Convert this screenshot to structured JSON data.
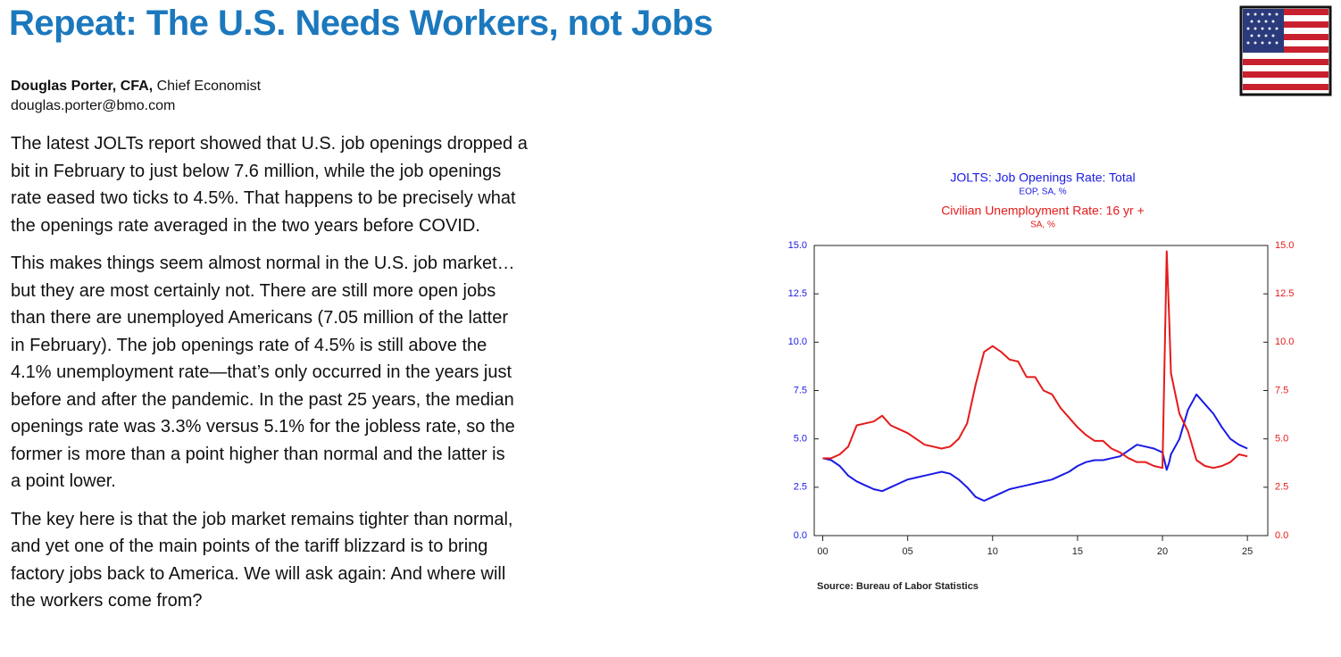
{
  "header": {
    "title": "Repeat: The U.S. Needs Workers, not Jobs",
    "author": "Douglas Porter, CFA,",
    "role": "Chief Economist",
    "email": "douglas.porter@bmo.com"
  },
  "paragraphs": [
    [
      "The latest JOLTs report showed that U.S. job openings dropped a",
      "bit in February to just below 7.6 million, while the job openings",
      "rate eased two ticks to 4.5%. That happens to be precisely what",
      "the openings rate averaged in the two years before COVID."
    ],
    [
      "This makes things seem almost normal in the U.S. job market…",
      "but they are most certainly not. There are still more open jobs",
      "than there are unemployed Americans (7.05 million of the latter",
      "in February). The job openings rate of 4.5% is still above the",
      "4.1% unemployment rate—that’s only occurred in the years just",
      "before and after the pandemic. In the past 25 years, the median",
      "openings rate was 3.3% versus 5.1% for the jobless rate, so the",
      "former is more than a point higher than normal and the latter is",
      "a point lower."
    ],
    [
      "The key here is that the job market remains tighter than normal,",
      "and yet one of the main points of the tariff blizzard is to bring",
      "factory jobs back to America. We will ask again: And where will",
      "the workers come from?"
    ]
  ],
  "chart_data": {
    "type": "line",
    "source": "Source:  Bureau of Labor Statistics",
    "x": [
      2000,
      2000.5,
      2001,
      2001.5,
      2002,
      2002.5,
      2003,
      2003.5,
      2004,
      2004.5,
      2005,
      2005.5,
      2006,
      2006.5,
      2007,
      2007.5,
      2008,
      2008.5,
      2009,
      2009.5,
      2010,
      2010.5,
      2011,
      2011.5,
      2012,
      2012.5,
      2013,
      2013.5,
      2014,
      2014.5,
      2015,
      2015.5,
      2016,
      2016.5,
      2017,
      2017.5,
      2018,
      2018.5,
      2019,
      2019.5,
      2020,
      2020.25,
      2020.4,
      2020.5,
      2021,
      2021.5,
      2022,
      2022.5,
      2023,
      2023.5,
      2024,
      2024.5,
      2025
    ],
    "series": [
      {
        "name": "JOLTS: Job Openings Rate: Total",
        "units": "EOP, SA, %",
        "color": "#1a1ae6",
        "values": [
          4.0,
          3.9,
          3.6,
          3.1,
          2.8,
          2.6,
          2.4,
          2.3,
          2.5,
          2.7,
          2.9,
          3.0,
          3.1,
          3.2,
          3.3,
          3.2,
          2.9,
          2.5,
          2.0,
          1.8,
          2.0,
          2.2,
          2.4,
          2.5,
          2.6,
          2.7,
          2.8,
          2.9,
          3.1,
          3.3,
          3.6,
          3.8,
          3.9,
          3.9,
          4.0,
          4.1,
          4.4,
          4.7,
          4.6,
          4.5,
          4.3,
          3.4,
          3.8,
          4.2,
          5.0,
          6.5,
          7.3,
          6.8,
          6.3,
          5.6,
          5.0,
          4.7,
          4.5
        ]
      },
      {
        "name": "Civilian Unemployment Rate: 16 yr +",
        "units": "SA, %",
        "color": "#e61a1a",
        "axis": "y2",
        "values": [
          4.0,
          4.0,
          4.2,
          4.6,
          5.7,
          5.8,
          5.9,
          6.2,
          5.7,
          5.5,
          5.3,
          5.0,
          4.7,
          4.6,
          4.5,
          4.6,
          5.0,
          5.8,
          7.8,
          9.5,
          9.8,
          9.5,
          9.1,
          9.0,
          8.2,
          8.2,
          7.5,
          7.3,
          6.6,
          6.1,
          5.6,
          5.2,
          4.9,
          4.9,
          4.5,
          4.3,
          4.0,
          3.8,
          3.8,
          3.6,
          3.5,
          14.7,
          11.1,
          8.4,
          6.3,
          5.4,
          3.9,
          3.6,
          3.5,
          3.6,
          3.8,
          4.2,
          4.1
        ]
      }
    ],
    "xlim": [
      1999.5,
      2026.2
    ],
    "xticks": [
      {
        "value": 2000,
        "label": "00"
      },
      {
        "value": 2005,
        "label": "05"
      },
      {
        "value": 2010,
        "label": "10"
      },
      {
        "value": 2015,
        "label": "15"
      },
      {
        "value": 2020,
        "label": "20"
      },
      {
        "value": 2025,
        "label": "25"
      }
    ],
    "ylim": [
      0,
      15
    ],
    "yticks": [
      {
        "value": 0,
        "label": "0.0"
      },
      2.5,
      {
        "value": 5,
        "label": "5.0"
      },
      7.5,
      {
        "value": 10,
        "label": "10.0"
      },
      12.5,
      {
        "value": 15,
        "label": "15.0"
      }
    ],
    "y2lim": [
      0,
      15
    ],
    "y2ticks": [
      {
        "value": 0,
        "label": "0.0"
      },
      2.5,
      {
        "value": 5,
        "label": "5.0"
      },
      7.5,
      {
        "value": 10,
        "label": "10.0"
      },
      12.5,
      {
        "value": 15,
        "label": "15.0"
      }
    ]
  }
}
